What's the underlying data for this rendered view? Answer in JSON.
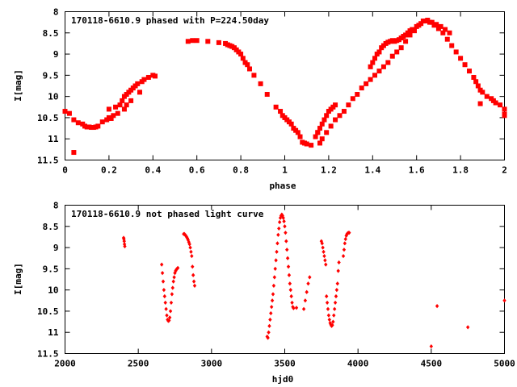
{
  "colors": {
    "marker": "#ff0000",
    "axis": "#000000",
    "background": "#ffffff"
  },
  "chart_data": [
    {
      "type": "scatter",
      "title": "170118-6610.9 phased with P=224.50day",
      "xlabel": "phase",
      "ylabel": "I[mag]",
      "xlim": [
        0,
        2
      ],
      "ylim": [
        11.5,
        8
      ],
      "y_inverted": true,
      "grid": false,
      "x_ticks": [
        "0",
        "0.2",
        "0.4",
        "0.6",
        "0.8",
        "1",
        "1.2",
        "1.4",
        "1.6",
        "1.8",
        "2"
      ],
      "y_ticks": [
        "8",
        "8.5",
        "9",
        "9.5",
        "10",
        "10.5",
        "11",
        "11.5"
      ],
      "marker": "filled-square",
      "series": [
        {
          "x": [
            0.0,
            0.02,
            0.04,
            0.04,
            0.06,
            0.08,
            0.09,
            0.1,
            0.11,
            0.12,
            0.13,
            0.14,
            0.15,
            0.17,
            0.19,
            0.2,
            0.21,
            0.2,
            0.22,
            0.23,
            0.24,
            0.25,
            0.26,
            0.27,
            0.27,
            0.28,
            0.28,
            0.29,
            0.3,
            0.3,
            0.31,
            0.32,
            0.33,
            0.34,
            0.35,
            0.36,
            0.38,
            0.4,
            0.41,
            0.56,
            0.58,
            0.6,
            0.65,
            0.7,
            0.73,
            0.74,
            0.75,
            0.76,
            0.77,
            0.78,
            0.79,
            0.8,
            0.81,
            0.82,
            0.83,
            0.84,
            0.86,
            0.89,
            0.92,
            0.96,
            0.98,
            0.99,
            1.0,
            1.01,
            1.02,
            1.03,
            1.04,
            1.05,
            1.06,
            1.07,
            1.08,
            1.09,
            1.1,
            1.12,
            1.14,
            1.15,
            1.16,
            1.17,
            1.18,
            1.19,
            1.2,
            1.21,
            1.22,
            1.23,
            1.15,
            1.16,
            1.17,
            1.19,
            1.21,
            1.23,
            1.25,
            1.27,
            1.29,
            1.31,
            1.33,
            1.35,
            1.37,
            1.39,
            1.41,
            1.43,
            1.45,
            1.47,
            1.49,
            1.51,
            1.53,
            1.55,
            1.57,
            1.59,
            1.61,
            1.63,
            1.65,
            1.67,
            1.69,
            1.71,
            1.73,
            1.75,
            1.39,
            1.4,
            1.41,
            1.42,
            1.43,
            1.44,
            1.45,
            1.46,
            1.47,
            1.48,
            1.49,
            1.5,
            1.51,
            1.52,
            1.53,
            1.54,
            1.55,
            1.56,
            1.57,
            1.58,
            1.6,
            1.62,
            1.64,
            1.66,
            1.68,
            1.7,
            1.72,
            1.74,
            1.76,
            1.78,
            1.8,
            1.82,
            1.84,
            1.86,
            1.87,
            1.88,
            1.89,
            1.9,
            1.92,
            1.94,
            1.96,
            1.98,
            2.0,
            2.0
          ],
          "y": [
            10.35,
            10.4,
            10.55,
            11.32,
            10.62,
            10.65,
            10.7,
            10.72,
            10.72,
            10.73,
            10.73,
            10.72,
            10.7,
            10.6,
            10.55,
            10.5,
            10.52,
            10.3,
            10.45,
            10.25,
            10.4,
            10.2,
            10.1,
            10.0,
            10.3,
            9.95,
            10.2,
            9.9,
            9.85,
            10.1,
            9.8,
            9.75,
            9.7,
            9.9,
            9.65,
            9.6,
            9.55,
            9.5,
            9.52,
            8.7,
            8.68,
            8.68,
            8.7,
            8.73,
            8.75,
            8.78,
            8.8,
            8.82,
            8.85,
            8.9,
            8.95,
            9.0,
            9.1,
            9.2,
            9.25,
            9.35,
            9.5,
            9.7,
            9.95,
            10.25,
            10.35,
            10.45,
            10.5,
            10.55,
            10.6,
            10.65,
            10.75,
            10.8,
            10.85,
            10.95,
            11.08,
            11.1,
            11.12,
            11.15,
            10.95,
            10.85,
            10.75,
            10.65,
            10.55,
            10.45,
            10.35,
            10.3,
            10.25,
            10.2,
            10.85,
            11.1,
            11.0,
            10.85,
            10.7,
            10.55,
            10.45,
            10.35,
            10.2,
            10.05,
            9.95,
            9.8,
            9.7,
            9.6,
            9.5,
            9.4,
            9.3,
            9.2,
            9.05,
            8.95,
            8.85,
            8.7,
            8.55,
            8.45,
            8.32,
            8.22,
            8.2,
            8.25,
            8.3,
            8.35,
            8.42,
            8.5,
            9.3,
            9.2,
            9.1,
            9.0,
            8.95,
            8.85,
            8.8,
            8.75,
            8.72,
            8.7,
            8.68,
            8.7,
            8.68,
            8.66,
            8.62,
            8.58,
            8.55,
            8.5,
            8.45,
            8.42,
            8.35,
            8.28,
            8.22,
            8.25,
            8.32,
            8.4,
            8.5,
            8.65,
            8.8,
            8.95,
            9.1,
            9.25,
            9.4,
            9.55,
            9.65,
            9.75,
            9.85,
            9.9,
            10.0,
            10.05,
            10.15,
            10.2,
            10.3,
            10.42
          ],
          "extra": [
            [
              1.95,
              10.1
            ],
            [
              1.89,
              10.17
            ],
            [
              2.0,
              10.45
            ]
          ]
        }
      ]
    },
    {
      "type": "scatter",
      "title": "170118-6610.9 not phased light curve",
      "xlabel": "hjd0",
      "ylabel": "I[mag]",
      "xlim": [
        2000,
        5000
      ],
      "ylim": [
        11.5,
        8
      ],
      "y_inverted": true,
      "grid": false,
      "x_ticks": [
        "2000",
        "2500",
        "3000",
        "3500",
        "4000",
        "4500",
        "5000"
      ],
      "y_ticks": [
        "8",
        "8.5",
        "9",
        "9.5",
        "10",
        "10.5",
        "11",
        "11.5"
      ],
      "marker": "filled-diamond",
      "series": [
        {
          "x": [
            2400,
            2402,
            2404,
            2406,
            2408,
            2660,
            2665,
            2670,
            2675,
            2680,
            2685,
            2690,
            2695,
            2700,
            2705,
            2710,
            2715,
            2720,
            2725,
            2730,
            2735,
            2740,
            2745,
            2750,
            2755,
            2760,
            2765,
            2770,
            2810,
            2815,
            2820,
            2825,
            2830,
            2835,
            2840,
            2845,
            2850,
            2855,
            2860,
            2865,
            2870,
            2875,
            2880,
            2885,
            3380,
            3385,
            3390,
            3395,
            3400,
            3405,
            3410,
            3415,
            3420,
            3425,
            3430,
            3435,
            3440,
            3445,
            3450,
            3455,
            3460,
            3465,
            3470,
            3475,
            3480,
            3485,
            3490,
            3495,
            3500,
            3505,
            3510,
            3515,
            3520,
            3525,
            3530,
            3535,
            3540,
            3545,
            3550,
            3555,
            3560,
            3580,
            3630,
            3640,
            3650,
            3660,
            3670,
            3750,
            3755,
            3760,
            3765,
            3770,
            3775,
            3780,
            3785,
            3790,
            3795,
            3800,
            3805,
            3810,
            3815,
            3820,
            3825,
            3830,
            3835,
            3840,
            3845,
            3850,
            3855,
            3860,
            3865,
            3870,
            3900,
            3905,
            3910,
            3915,
            3920,
            3925,
            3930,
            3935,
            3940,
            4500,
            4540,
            4750,
            5000
          ],
          "y": [
            8.77,
            8.8,
            8.85,
            8.92,
            8.97,
            9.4,
            9.6,
            9.8,
            10.0,
            10.15,
            10.3,
            10.45,
            10.6,
            10.7,
            10.73,
            10.72,
            10.65,
            10.5,
            10.3,
            10.1,
            9.95,
            9.8,
            9.7,
            9.6,
            9.55,
            9.52,
            9.5,
            9.48,
            8.68,
            8.68,
            8.7,
            8.72,
            8.75,
            8.78,
            8.82,
            8.87,
            8.92,
            9.0,
            9.1,
            9.2,
            9.45,
            9.65,
            9.8,
            9.9,
            11.1,
            11.13,
            11.0,
            10.85,
            10.7,
            10.55,
            10.4,
            10.25,
            10.1,
            9.9,
            9.7,
            9.5,
            9.3,
            9.1,
            8.9,
            8.7,
            8.55,
            8.4,
            8.3,
            8.25,
            8.22,
            8.25,
            8.3,
            8.38,
            8.5,
            8.65,
            8.85,
            9.05,
            9.25,
            9.45,
            9.65,
            9.85,
            10.0,
            10.15,
            10.3,
            10.4,
            10.43,
            10.42,
            10.45,
            10.25,
            10.05,
            9.85,
            9.7,
            8.85,
            8.9,
            9.0,
            9.1,
            9.2,
            9.3,
            9.4,
            10.15,
            10.3,
            10.45,
            10.6,
            10.7,
            10.78,
            10.82,
            10.85,
            10.83,
            10.75,
            10.6,
            10.45,
            10.3,
            10.15,
            10.0,
            9.85,
            9.55,
            9.35,
            9.2,
            9.05,
            8.9,
            8.8,
            8.72,
            8.68,
            8.66,
            8.65,
            8.65,
            11.33,
            10.38,
            10.88,
            10.25
          ]
        }
      ]
    }
  ]
}
